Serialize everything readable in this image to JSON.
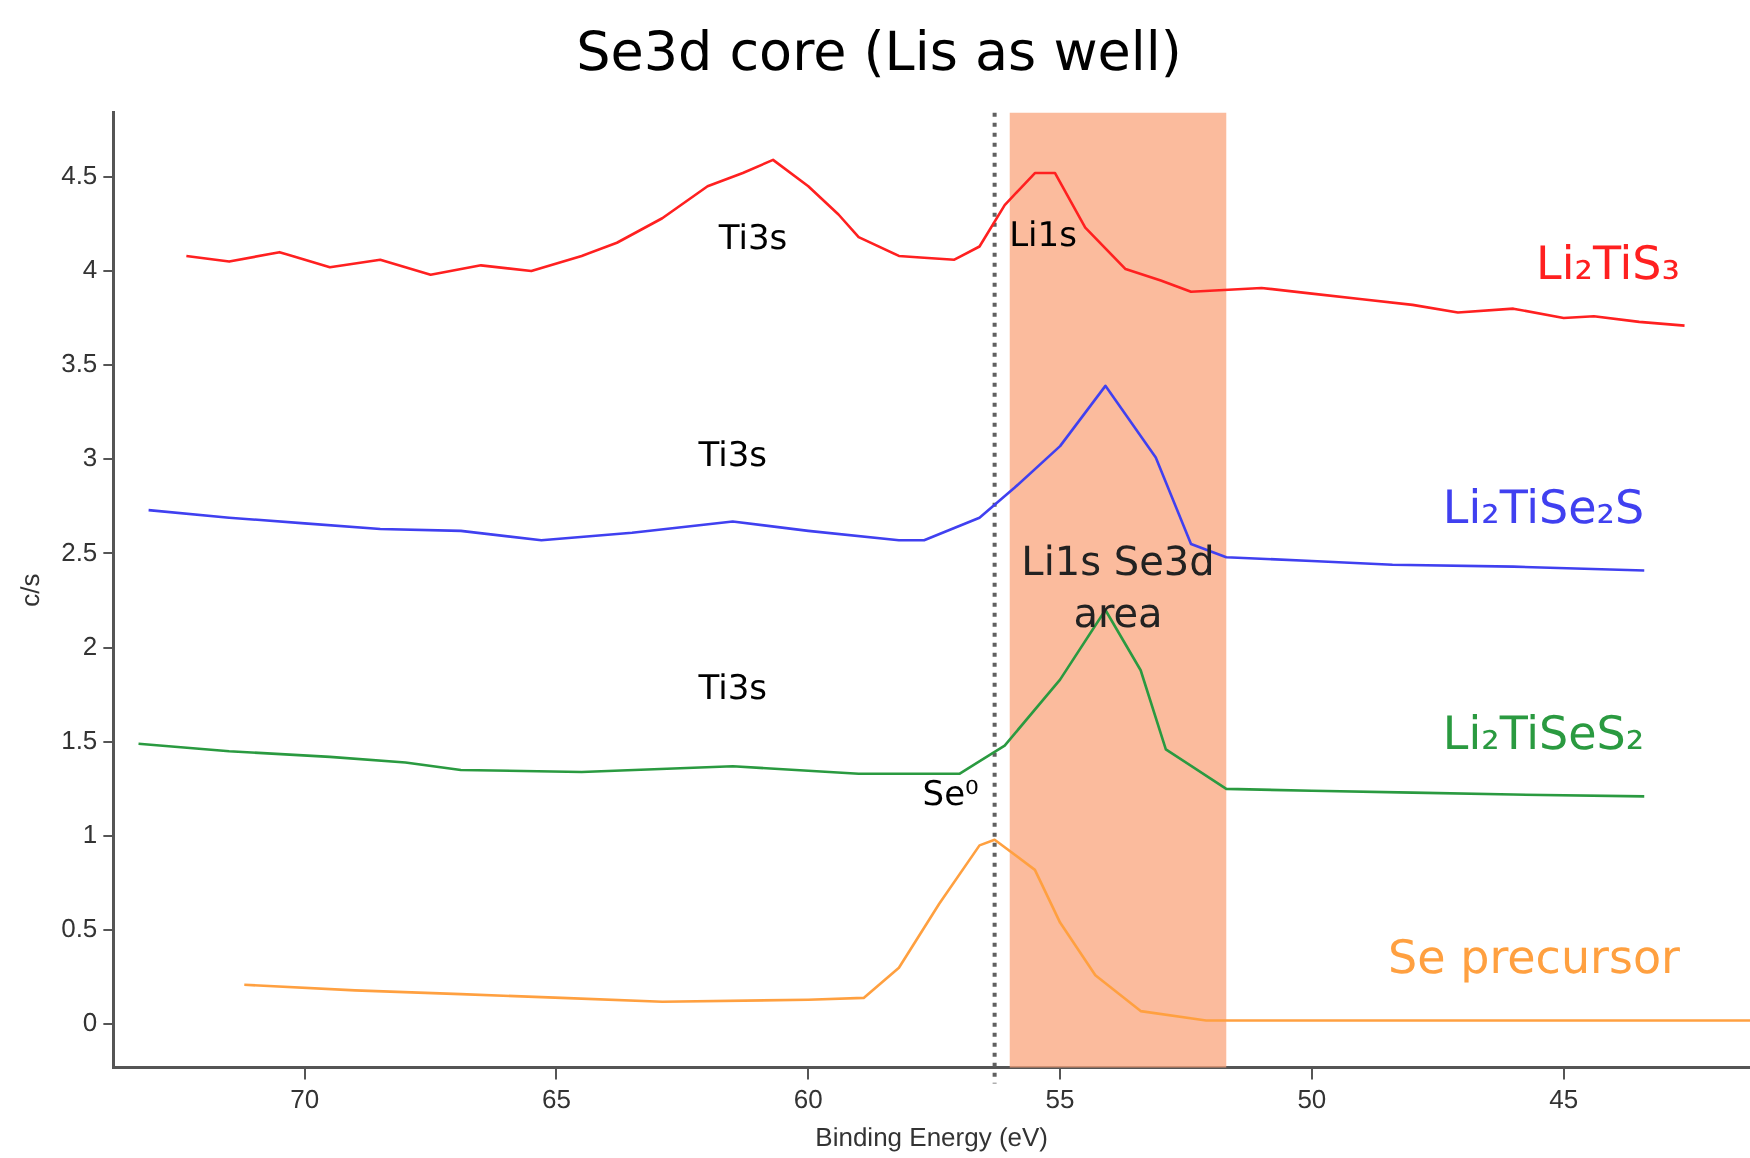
{
  "chart_data": {
    "type": "line",
    "title": "Se3d core (Lis as well)",
    "xlabel": "Binding Energy (eV)",
    "ylabel": "c/s",
    "xlim": [
      73.8,
      41.3
    ],
    "xticks": [
      70,
      65,
      60,
      55,
      50,
      45
    ],
    "ylim": [
      -0.23,
      4.84
    ],
    "yticks": [
      0,
      0.5,
      1,
      1.5,
      2,
      2.5,
      3,
      3.5,
      4,
      4.5
    ],
    "grid": false,
    "legend": false,
    "marker": "none",
    "line_style": "solid",
    "series": [
      {
        "name": "Li₂TiS₃",
        "color": "#ff2020",
        "x": [
          72.35,
          71.5,
          70.5,
          69.5,
          68.5,
          67.5,
          66.5,
          65.5,
          64.5,
          63.8,
          62.9,
          62.0,
          61.3,
          60.7,
          60.0,
          59.4,
          59.0,
          58.2,
          57.7,
          57.1,
          56.6,
          56.1,
          55.5,
          55.1,
          54.5,
          53.7,
          53.0,
          52.4,
          51.0,
          50.0,
          49.0,
          48.0,
          47.1,
          46.0,
          45.0,
          44.4,
          43.5,
          42.6
        ],
        "values": [
          4.08,
          4.05,
          4.1,
          4.02,
          4.06,
          3.98,
          4.03,
          4.0,
          4.08,
          4.15,
          4.28,
          4.45,
          4.52,
          4.59,
          4.45,
          4.3,
          4.18,
          4.08,
          4.07,
          4.06,
          4.13,
          4.35,
          4.52,
          4.52,
          4.23,
          4.01,
          3.95,
          3.89,
          3.91,
          3.88,
          3.85,
          3.82,
          3.78,
          3.8,
          3.75,
          3.76,
          3.73,
          3.71
        ]
      },
      {
        "name": "Li₂TiSe₂S",
        "color": "#4040f0",
        "x": [
          73.1,
          71.5,
          70.0,
          68.5,
          66.9,
          65.3,
          63.5,
          61.5,
          60.0,
          58.2,
          57.7,
          56.6,
          55.9,
          55.0,
          54.1,
          53.1,
          52.4,
          51.7,
          50.0,
          48.4,
          46.0,
          43.4
        ],
        "values": [
          2.73,
          2.69,
          2.66,
          2.63,
          2.62,
          2.57,
          2.61,
          2.67,
          2.62,
          2.57,
          2.57,
          2.69,
          2.85,
          3.07,
          3.39,
          3.01,
          2.55,
          2.48,
          2.46,
          2.44,
          2.43,
          2.41
        ]
      },
      {
        "name": "Li₂TiSeS₂",
        "color": "#2a9a40",
        "x": [
          73.3,
          71.5,
          69.5,
          68.0,
          66.9,
          64.5,
          61.5,
          59.0,
          57.0,
          56.1,
          55.0,
          54.1,
          53.4,
          52.9,
          51.7,
          50.0,
          48.0,
          46.0,
          43.4
        ],
        "values": [
          1.49,
          1.45,
          1.42,
          1.39,
          1.35,
          1.34,
          1.37,
          1.33,
          1.33,
          1.48,
          1.83,
          2.2,
          1.88,
          1.46,
          1.25,
          1.24,
          1.23,
          1.22,
          1.21
        ]
      },
      {
        "name": "Se precursor",
        "color": "#ffa040",
        "x": [
          71.2,
          69.0,
          66.9,
          64.9,
          62.9,
          60.0,
          58.9,
          58.2,
          57.4,
          56.6,
          56.3,
          55.5,
          55.0,
          54.3,
          53.4,
          52.1,
          50.0,
          47.0,
          44.0,
          41.3
        ],
        "values": [
          0.21,
          0.18,
          0.16,
          0.14,
          0.12,
          0.13,
          0.14,
          0.3,
          0.64,
          0.95,
          0.98,
          0.82,
          0.54,
          0.26,
          0.07,
          0.02,
          0.02,
          0.02,
          0.02,
          0.02
        ]
      }
    ],
    "ref_lines": [
      {
        "axis": "x",
        "value": 56.3,
        "color": "#606060",
        "line_style": "dotted"
      }
    ],
    "bands": [
      {
        "axis": "x",
        "from": 56.0,
        "to": 51.7,
        "label": "Li1s Se3d area",
        "color": "#f9a47c"
      }
    ],
    "annotations": [
      {
        "text": "Ti3s",
        "x": 60.7,
        "y": 4.59
      },
      {
        "text": "Li1s",
        "x": 55.1,
        "y": 4.52
      },
      {
        "text": "Ti3s",
        "x": 61.5,
        "y": 2.67
      },
      {
        "text": "Ti3s",
        "x": 61.5,
        "y": 1.37
      },
      {
        "text": "Se⁰",
        "x": 56.3,
        "y": 0.98
      }
    ]
  }
}
